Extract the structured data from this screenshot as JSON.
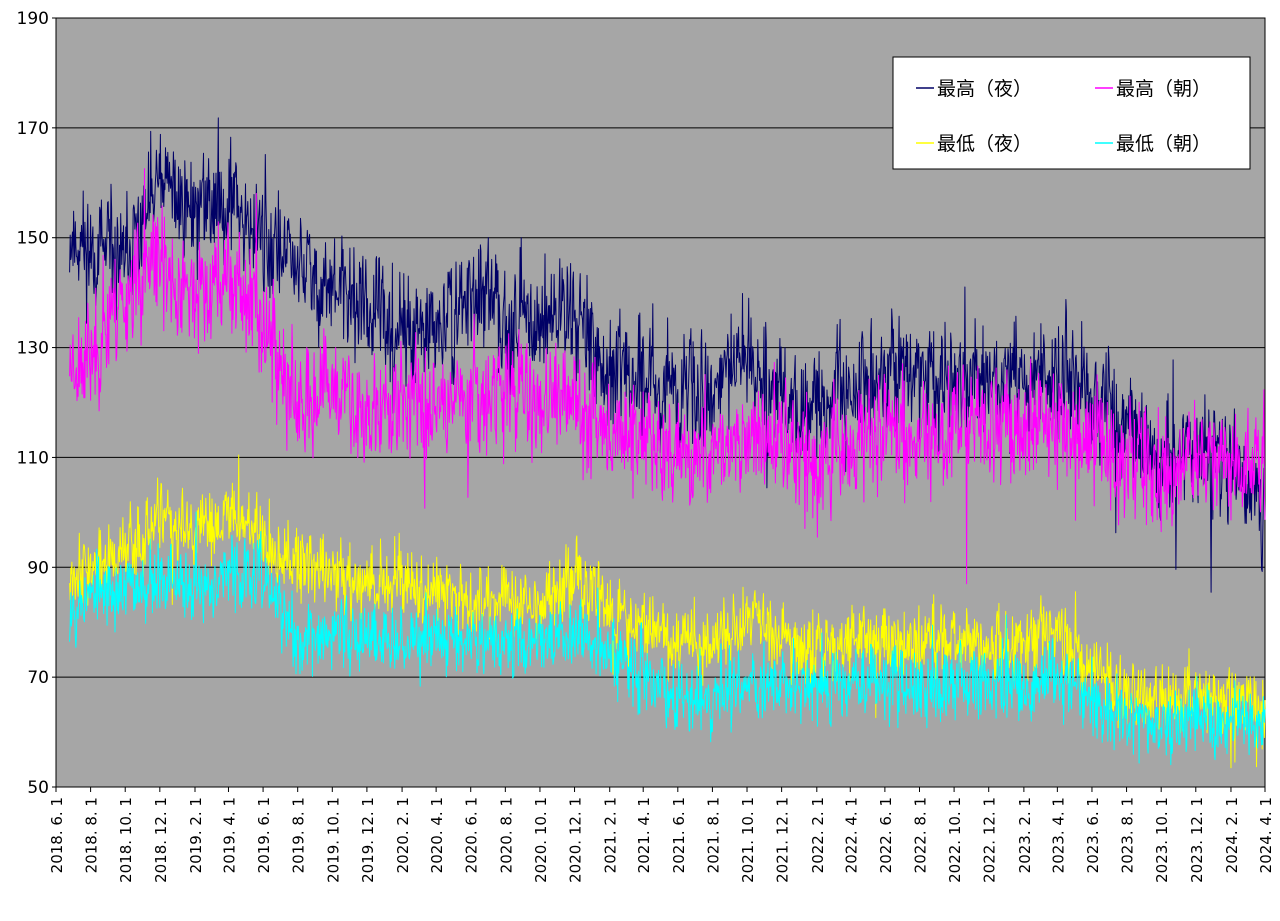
{
  "chart_data": {
    "type": "line",
    "title": "",
    "xlabel": "",
    "ylabel": "",
    "ylim": [
      50,
      190
    ],
    "yticks": [
      50,
      70,
      90,
      110,
      130,
      150,
      170,
      190
    ],
    "x_tick_labels": [
      "2018.6.1",
      "2018.8.1",
      "2018.10.1",
      "2018.12.1",
      "2019.2.1",
      "2019.4.1",
      "2019.6.1",
      "2019.8.1",
      "2019.10.1",
      "2019.12.1",
      "2020.2.1",
      "2020.4.1",
      "2020.6.1",
      "2020.8.1",
      "2020.10.1",
      "2020.12.1",
      "2021.2.1",
      "2021.4.1",
      "2021.6.1",
      "2021.8.1",
      "2021.10.1",
      "2021.12.1",
      "2022.2.1",
      "2022.4.1",
      "2022.6.1",
      "2022.8.1",
      "2022.10.1",
      "2022.12.1",
      "2023.2.1",
      "2023.4.1",
      "2023.6.1",
      "2023.8.1",
      "2023.10.1",
      "2023.12.1",
      "2024.2.1",
      "2024.4.1"
    ],
    "grid": true,
    "legend_position": "top-right",
    "plot_background": "#a6a6a6",
    "x_start": "2018-06-01",
    "x_end": "2024-04-01",
    "data_start": "2018-06-25",
    "data_end": "2024-04-01",
    "series_anchor_labels": [
      "2018-06-25",
      "2018-08-01",
      "2018-10-01",
      "2018-12-01",
      "2019-02-01",
      "2019-04-01",
      "2019-06-01",
      "2019-08-01",
      "2019-10-01",
      "2019-12-01",
      "2020-02-01",
      "2020-04-01",
      "2020-06-01",
      "2020-08-01",
      "2020-10-01",
      "2020-12-01",
      "2021-02-01",
      "2021-04-01",
      "2021-06-01",
      "2021-08-01",
      "2021-10-01",
      "2021-12-01",
      "2022-02-01",
      "2022-04-01",
      "2022-06-01",
      "2022-08-01",
      "2022-10-01",
      "2022-12-01",
      "2023-02-01",
      "2023-04-01",
      "2023-06-01",
      "2023-08-01",
      "2023-10-01",
      "2023-12-01",
      "2024-02-01",
      "2024-04-01"
    ],
    "series": [
      {
        "name": "最高（夜）",
        "color": "#000066",
        "noise": 8,
        "seed": 11,
        "values": [
          150,
          148,
          145,
          160,
          155,
          158,
          150,
          145,
          140,
          138,
          132,
          132,
          140,
          136,
          135,
          138,
          124,
          125,
          122,
          123,
          128,
          122,
          118,
          122,
          126,
          124,
          124,
          124,
          124,
          126,
          120,
          116,
          108,
          112,
          108,
          104
        ]
      },
      {
        "name": "最高（朝）",
        "color": "#ff00ff",
        "noise": 8,
        "seed": 23,
        "values": [
          128,
          128,
          140,
          145,
          138,
          143,
          135,
          118,
          122,
          118,
          120,
          120,
          122,
          123,
          120,
          120,
          116,
          115,
          110,
          110,
          115,
          113,
          110,
          112,
          115,
          114,
          115,
          115,
          116,
          116,
          114,
          110,
          108,
          108,
          110,
          108
        ]
      },
      {
        "name": "最低（夜）",
        "color": "#ffff00",
        "noise": 5,
        "seed": 37,
        "values": [
          90,
          90,
          92,
          98,
          96,
          100,
          96,
          90,
          89,
          87,
          88,
          86,
          84,
          84,
          83,
          88,
          82,
          80,
          76,
          76,
          80,
          77,
          75,
          77,
          77,
          76,
          77,
          76,
          76,
          78,
          72,
          67,
          66,
          66,
          66,
          64
        ]
      },
      {
        "name": "最低（朝）",
        "color": "#00ffff",
        "noise": 5,
        "seed": 53,
        "values": [
          83,
          85,
          86,
          88,
          85,
          90,
          88,
          76,
          78,
          77,
          77,
          77,
          78,
          76,
          77,
          78,
          74,
          72,
          66,
          66,
          70,
          68,
          67,
          69,
          70,
          68,
          69,
          69,
          68,
          70,
          66,
          62,
          61,
          62,
          62,
          61
        ]
      }
    ]
  }
}
